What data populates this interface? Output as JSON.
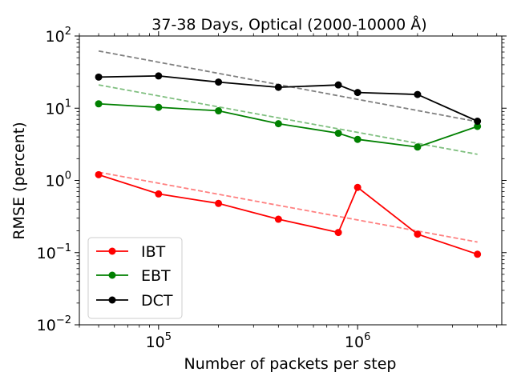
{
  "chart_data": {
    "type": "line",
    "title": "37-38 Days, Optical (2000-10000 Å)",
    "xlabel": "Number of packets per step",
    "ylabel": "RMSE (percent)",
    "xscale": "log",
    "yscale": "log",
    "xlim": [
      40000,
      5300000
    ],
    "ylim": [
      0.01,
      100
    ],
    "xticks": [
      {
        "value": 100000,
        "base": "10",
        "exp": "5"
      },
      {
        "value": 1000000,
        "base": "10",
        "exp": "6"
      }
    ],
    "yticks": [
      {
        "value": 100,
        "base": "10",
        "exp": "2"
      },
      {
        "value": 10,
        "base": "10",
        "exp": "1"
      },
      {
        "value": 1,
        "base": "10",
        "exp": "0"
      },
      {
        "value": 0.1,
        "base": "10",
        "exp": "−1"
      },
      {
        "value": 0.01,
        "base": "10",
        "exp": "−2"
      }
    ],
    "x": [
      50000,
      100000,
      200000,
      400000,
      800000,
      1000000,
      2000000,
      4000000
    ],
    "series": [
      {
        "name": "IBT",
        "color": "#ff0000",
        "values": [
          1.2,
          0.65,
          0.48,
          0.29,
          0.19,
          0.8,
          0.18,
          0.095
        ],
        "fit": {
          "x": [
            50000,
            4000000
          ],
          "y": [
            1.3,
            0.14
          ],
          "color": "#ff8080"
        }
      },
      {
        "name": "EBT",
        "color": "#008000",
        "values": [
          11.5,
          10.3,
          9.2,
          6.1,
          4.5,
          3.7,
          2.9,
          5.6
        ],
        "fit": {
          "x": [
            50000,
            4000000
          ],
          "y": [
            21,
            2.3
          ],
          "color": "#7fbf7f"
        }
      },
      {
        "name": "DCT",
        "color": "#000000",
        "values": [
          27,
          28,
          23,
          19.5,
          21,
          16.5,
          15.5,
          6.6
        ],
        "fit": {
          "x": [
            50000,
            4000000
          ],
          "y": [
            62,
            6.5
          ],
          "color": "#808080"
        }
      }
    ],
    "legend": {
      "position": "lower-left"
    }
  }
}
